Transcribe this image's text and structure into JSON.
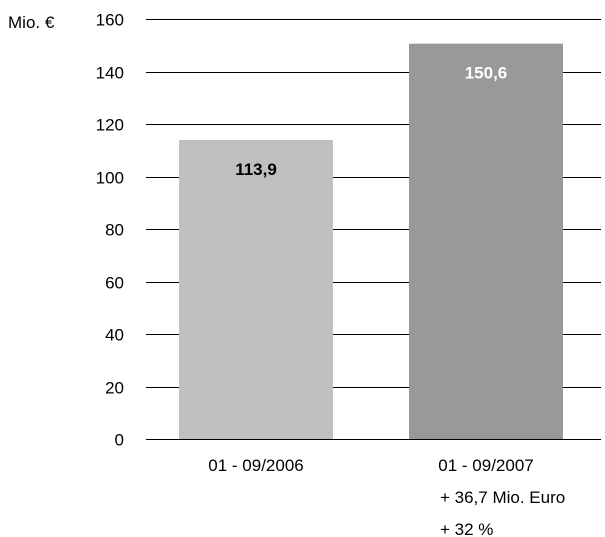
{
  "chart_data": {
    "type": "bar",
    "title": "",
    "xlabel": "",
    "ylabel": "Mio. €",
    "ylim": [
      0,
      160
    ],
    "ytick_step": 20,
    "grid": true,
    "legend": "none",
    "categories": [
      "01 - 09/2006",
      "01 - 09/2007"
    ],
    "values": [
      113.9,
      150.6
    ],
    "data_labels": [
      "113,9",
      "150,6"
    ],
    "bar_colors": [
      "#bfbfbf",
      "#999999"
    ],
    "data_label_colors": [
      "#000000",
      "#ffffff"
    ],
    "annotations": [
      "+ 36,7 Mio. Euro",
      "+ 32 %"
    ]
  }
}
